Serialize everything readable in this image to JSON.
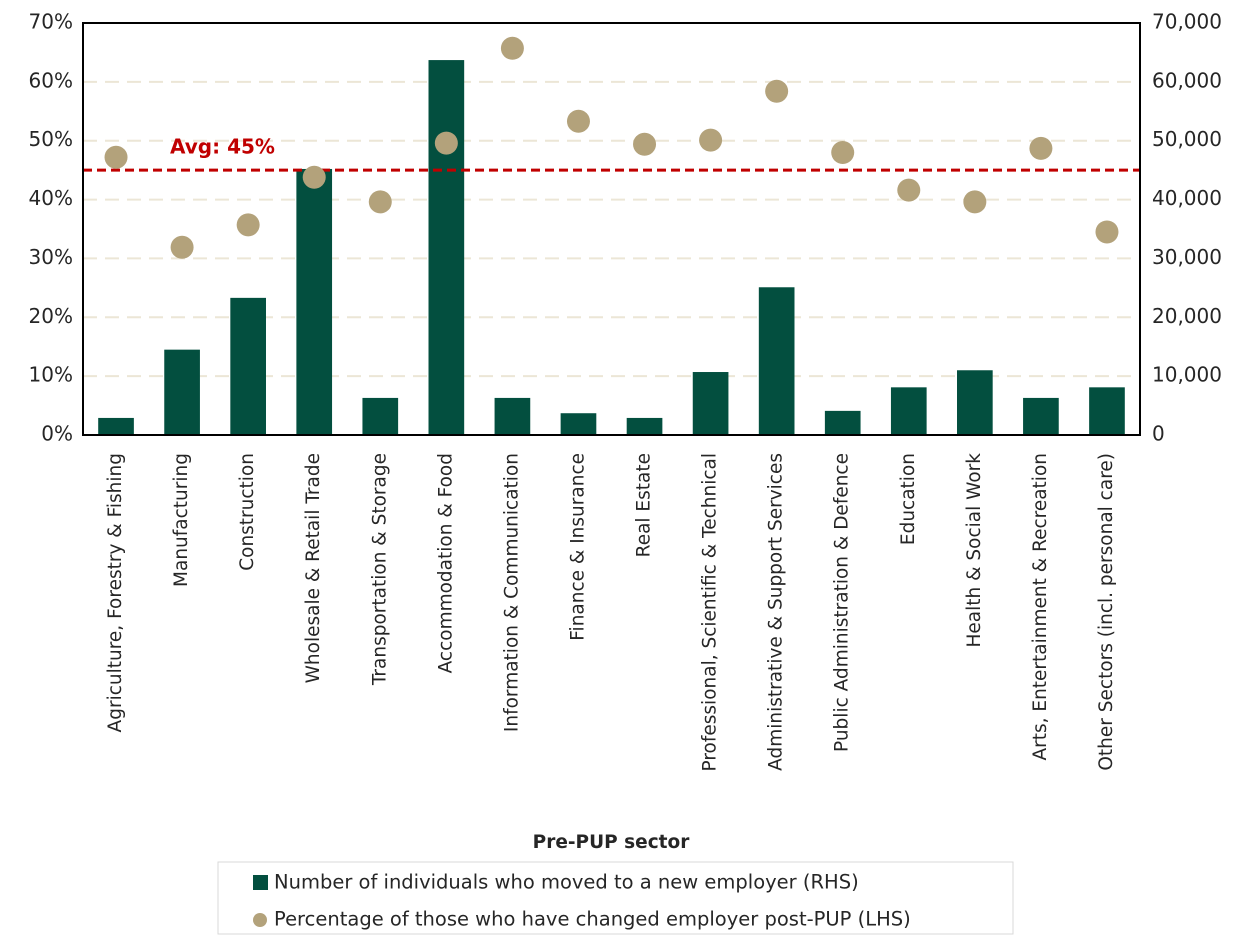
{
  "chart_data": {
    "type": "bar",
    "x_label": "Pre-PUP sector",
    "categories": [
      "Agriculture, Forestry & Fishing",
      "Manufacturing",
      "Construction",
      "Wholesale & Retail Trade",
      "Transportation & Storage",
      "Accommodation & Food",
      "Information & Communication",
      "Finance & Insurance",
      "Real Estate",
      "Professional, Scientific & Technical",
      "Administrative & Support Services",
      "Public Administration & Defence",
      "Education",
      "Health & Social Work",
      "Arts, Entertainment & Recreation",
      "Other Sectors (incl. personal care)"
    ],
    "series": [
      {
        "name": "Number of individuals who moved to a new employer (RHS)",
        "type": "bar",
        "axis": "y2",
        "color": "#034f3f",
        "values": [
          2900,
          14500,
          23300,
          45200,
          6300,
          63700,
          6300,
          3700,
          2900,
          10700,
          25100,
          4100,
          8100,
          11000,
          6300,
          8100
        ]
      },
      {
        "name": "Percentage of those who have changed employer post-PUP (LHS)",
        "type": "scatter",
        "axis": "y",
        "color": "#b3a27b",
        "values": [
          47.2,
          31.9,
          35.7,
          43.8,
          39.6,
          49.6,
          65.7,
          53.3,
          49.4,
          50.1,
          58.4,
          48.0,
          41.6,
          39.6,
          48.7,
          34.5
        ]
      }
    ],
    "ylim": [
      0,
      70
    ],
    "yticks": [
      {
        "value": 0,
        "label": "0%"
      },
      {
        "value": 10,
        "label": "10%"
      },
      {
        "value": 20,
        "label": "20%"
      },
      {
        "value": 30,
        "label": "30%"
      },
      {
        "value": 40,
        "label": "40%"
      },
      {
        "value": 50,
        "label": "50%"
      },
      {
        "value": 60,
        "label": "60%"
      },
      {
        "value": 70,
        "label": "70%"
      }
    ],
    "y2lim": [
      0,
      70000
    ],
    "y2ticks": [
      0,
      {
        "value": 10000,
        "label": "10,000"
      },
      {
        "value": 20000,
        "label": "20,000"
      },
      {
        "value": 30000,
        "label": "30,000"
      },
      {
        "value": 40000,
        "label": "40,000"
      },
      {
        "value": 50000,
        "label": "50,000"
      },
      {
        "value": 60000,
        "label": "60,000"
      },
      {
        "value": 70000,
        "label": "70,000"
      }
    ],
    "grid": true,
    "reference_line": {
      "value": 45,
      "label": "Avg: 45%",
      "color": "#c00000"
    },
    "legend": "bottom"
  }
}
